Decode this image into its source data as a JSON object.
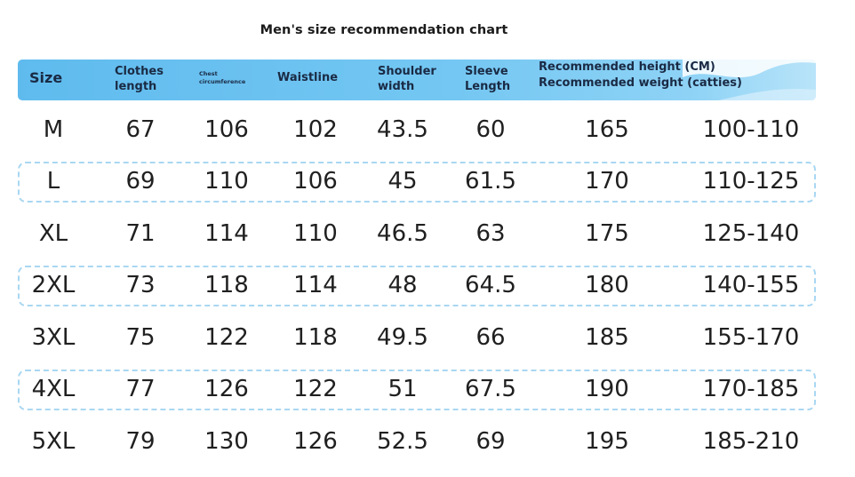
{
  "title": "Men's size recommendation chart",
  "headers": {
    "size": "Size",
    "clothes_length_1": "Clothes",
    "clothes_length_2": "length",
    "chest_1": "Chest",
    "chest_2": "circumference",
    "waistline": "Waistline",
    "shoulder_1": "Shoulder",
    "shoulder_2": "width",
    "sleeve_1": "Sleeve",
    "sleeve_2": "Length",
    "rec_height": "Recommended height (CM)",
    "rec_weight": "Recommended weight (catties)"
  },
  "colors": {
    "header_bg": "#6cc3f0",
    "dashed_border": "#a9d7f2"
  },
  "rows": [
    {
      "size": "M",
      "length": "67",
      "chest": "106",
      "waist": "102",
      "shoulder": "43.5",
      "sleeve": "60",
      "height": "165",
      "weight": "100-110"
    },
    {
      "size": "L",
      "length": "69",
      "chest": "110",
      "waist": "106",
      "shoulder": "45",
      "sleeve": "61.5",
      "height": "170",
      "weight": "110-125"
    },
    {
      "size": "XL",
      "length": "71",
      "chest": "114",
      "waist": "110",
      "shoulder": "46.5",
      "sleeve": "63",
      "height": "175",
      "weight": "125-140"
    },
    {
      "size": "2XL",
      "length": "73",
      "chest": "118",
      "waist": "114",
      "shoulder": "48",
      "sleeve": "64.5",
      "height": "180",
      "weight": "140-155"
    },
    {
      "size": "3XL",
      "length": "75",
      "chest": "122",
      "waist": "118",
      "shoulder": "49.5",
      "sleeve": "66",
      "height": "185",
      "weight": "155-170"
    },
    {
      "size": "4XL",
      "length": "77",
      "chest": "126",
      "waist": "122",
      "shoulder": "51",
      "sleeve": "67.5",
      "height": "190",
      "weight": "170-185"
    },
    {
      "size": "5XL",
      "length": "79",
      "chest": "130",
      "waist": "126",
      "shoulder": "52.5",
      "sleeve": "69",
      "height": "195",
      "weight": "185-210"
    }
  ]
}
